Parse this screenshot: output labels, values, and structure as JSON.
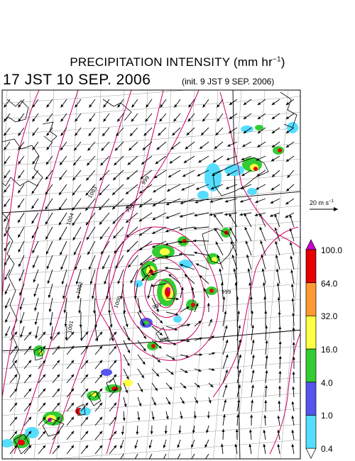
{
  "header": {
    "title_main": "PRECIPITATION INTENSITY (mm hr",
    "title_exp": "−1",
    "title_close": ")",
    "valid_time": "17 JST 10 SEP. 2006",
    "init_time": "(init. 9 JST 9 SEP. 2006)"
  },
  "reference_vector": {
    "label_main": "20 m s",
    "label_exp": "−1"
  },
  "colorbar": {
    "labels": [
      "100.0",
      "64.0",
      "32.0",
      "16.0",
      "4.0",
      "1.0",
      "0.4"
    ],
    "colors": [
      "#cc00cc",
      "#e60000",
      "#ff9933",
      "#ffff44",
      "#33cc33",
      "#5555ee",
      "#55ddff",
      "#ffffff"
    ]
  },
  "isobar_labels": [
    "1004",
    "1003",
    "1002",
    "1001",
    "1000",
    "999",
    "998",
    "997",
    "996",
    "999"
  ],
  "colors": {
    "isobar": "#cc0066",
    "coast": "#000000",
    "grid": "#888888"
  }
}
